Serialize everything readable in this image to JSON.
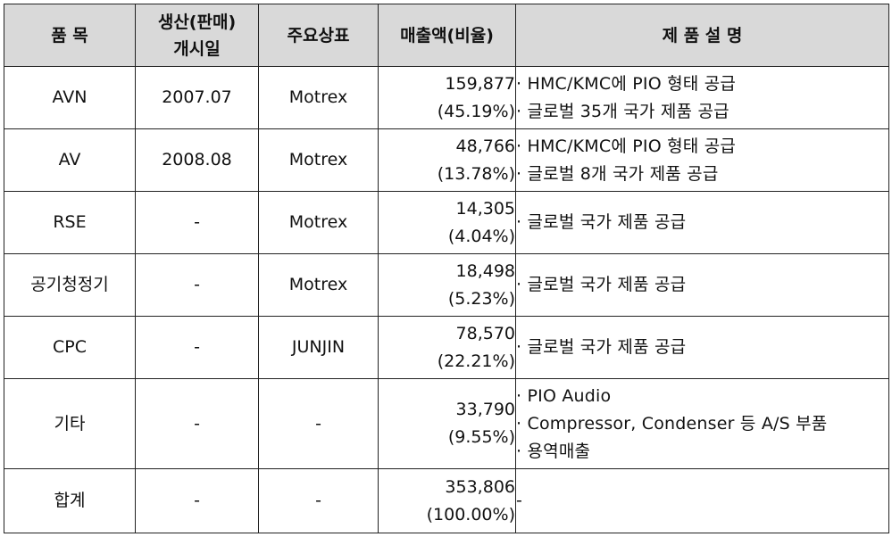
{
  "headers": {
    "item": "품 목",
    "launch_line1": "생산(판매)",
    "launch_line2": "개시일",
    "brand": "주요상표",
    "sales": "매출액(비율)",
    "description": "제 품 설 명"
  },
  "rows": [
    {
      "item": "AVN",
      "launch": "2007.07",
      "brand": "Motrex",
      "sales_amount": "159,877",
      "sales_ratio": "(45.19%)",
      "desc": [
        "· HMC/KMC에 PIO 형태 공급",
        "· 글로벌 35개 국가 제품 공급"
      ]
    },
    {
      "item": "AV",
      "launch": "2008.08",
      "brand": "Motrex",
      "sales_amount": "48,766",
      "sales_ratio": "(13.78%)",
      "desc": [
        "· HMC/KMC에 PIO 형태 공급",
        "· 글로벌 8개 국가 제품 공급"
      ]
    },
    {
      "item": "RSE",
      "launch": "-",
      "brand": "Motrex",
      "sales_amount": "14,305",
      "sales_ratio": "(4.04%)",
      "desc": [
        "· 글로벌 국가 제품 공급"
      ]
    },
    {
      "item": "공기청정기",
      "launch": "-",
      "brand": "Motrex",
      "sales_amount": "18,498",
      "sales_ratio": "(5.23%)",
      "desc": [
        "· 글로벌 국가 제품 공급"
      ]
    },
    {
      "item": "CPC",
      "launch": "-",
      "brand": "JUNJIN",
      "sales_amount": "78,570",
      "sales_ratio": "(22.21%)",
      "desc": [
        "· 글로벌 국가 제품 공급"
      ]
    },
    {
      "item": "기타",
      "launch": "-",
      "brand": "-",
      "sales_amount": "33,790",
      "sales_ratio": "(9.55%)",
      "desc": [
        "· PIO Audio",
        "· Compressor, Condenser 등 A/S 부품",
        "· 용역매출"
      ]
    },
    {
      "item": "합계",
      "launch": "-",
      "brand": "-",
      "sales_amount": "353,806",
      "sales_ratio": "(100.00%)",
      "desc": [
        "-"
      ]
    }
  ]
}
